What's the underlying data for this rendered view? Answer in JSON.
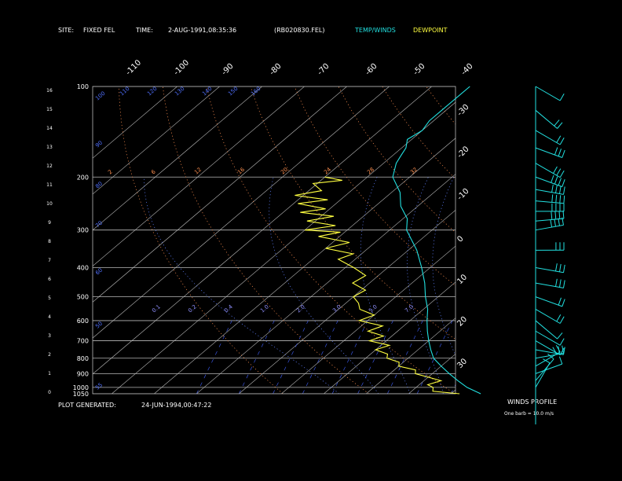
{
  "header": {
    "site_label": "SITE:",
    "site_value": "FIXED FEL",
    "time_label": "TIME:",
    "time_value": "2-AUG-1991,08:35:36",
    "file": "(RB020830.FEL)",
    "temp_winds": "TEMP/WINDS",
    "dewpoint": "DEWPOINT"
  },
  "footer": {
    "generated_label": "PLOT GENERATED:",
    "generated_value": "24-JUN-1994,00:47:22"
  },
  "winds_panel": {
    "title": "WINDS PROFILE",
    "note": "One barb = 10.0 m/s"
  },
  "colors": {
    "temperature": "#22e0e0",
    "dewpoint": "#ffff40",
    "grid": "#b8b8b8",
    "mixing_ratio": "#4060ff",
    "dry_adiabat": "#ff9050",
    "moist_adiabat": "#6080ff"
  },
  "chart_data": {
    "type": "line",
    "subtype": "skew-T log-p",
    "pressure_levels": [
      "100",
      "200",
      "300",
      "400",
      "500",
      "600",
      "700",
      "800",
      "900",
      "1000",
      "1050"
    ],
    "height_ticks_km": [
      "16",
      "15",
      "14",
      "13",
      "12",
      "11",
      "10",
      "9",
      "8",
      "7",
      "6",
      "5",
      "4",
      "3",
      "2",
      "1",
      "0"
    ],
    "temperature_ticks_top": [
      "-110",
      "-100",
      "-90",
      "-80",
      "-70",
      "-60",
      "-50",
      "-40"
    ],
    "temperature_ticks_right": [
      "-30",
      "-20",
      "-10",
      "0",
      "10",
      "20",
      "30"
    ],
    "mixing_ratio_labels": [
      "55",
      "50",
      "60",
      "70",
      "80",
      "90",
      "100",
      "110",
      "120",
      "130",
      "140",
      "150",
      "160"
    ],
    "dry_adiabat_labels": [
      "2",
      "6",
      "12",
      "16",
      "20",
      "24",
      "28",
      "32"
    ],
    "small_labels": [
      "0.1",
      "0.2",
      "0.4",
      "1.0",
      "2.0",
      "3.0",
      "5.0",
      "7.0"
    ],
    "ylim_hpa": [
      1050,
      100
    ],
    "series": [
      {
        "name": "TEMP/WINDS",
        "points_hpa_c": [
          [
            1050,
            27
          ],
          [
            1000,
            22
          ],
          [
            950,
            18
          ],
          [
            900,
            14
          ],
          [
            850,
            10
          ],
          [
            800,
            6
          ],
          [
            750,
            3
          ],
          [
            700,
            0
          ],
          [
            650,
            -3
          ],
          [
            600,
            -6
          ],
          [
            550,
            -9
          ],
          [
            500,
            -13
          ],
          [
            450,
            -17
          ],
          [
            400,
            -22
          ],
          [
            350,
            -28
          ],
          [
            300,
            -36
          ],
          [
            275,
            -39
          ],
          [
            250,
            -44
          ],
          [
            225,
            -48
          ],
          [
            200,
            -54
          ],
          [
            180,
            -57
          ],
          [
            170,
            -58
          ],
          [
            160,
            -59
          ],
          [
            150,
            -61
          ],
          [
            140,
            -60
          ],
          [
            130,
            -61
          ],
          [
            120,
            -61
          ],
          [
            110,
            -61
          ],
          [
            100,
            -61
          ]
        ]
      },
      {
        "name": "DEWPOINT",
        "points_hpa_c": [
          [
            1050,
            22
          ],
          [
            1030,
            15
          ],
          [
            1000,
            14
          ],
          [
            980,
            12
          ],
          [
            950,
            14
          ],
          [
            925,
            10
          ],
          [
            900,
            6
          ],
          [
            875,
            5
          ],
          [
            850,
            0
          ],
          [
            825,
            -1
          ],
          [
            800,
            -5
          ],
          [
            775,
            -6
          ],
          [
            750,
            -10
          ],
          [
            725,
            -8
          ],
          [
            700,
            -14
          ],
          [
            675,
            -12
          ],
          [
            650,
            -17
          ],
          [
            625,
            -15
          ],
          [
            600,
            -22
          ],
          [
            575,
            -20
          ],
          [
            550,
            -25
          ],
          [
            525,
            -27
          ],
          [
            500,
            -30
          ],
          [
            475,
            -29
          ],
          [
            450,
            -34
          ],
          [
            425,
            -33
          ],
          [
            400,
            -38
          ],
          [
            375,
            -44
          ],
          [
            360,
            -42
          ],
          [
            345,
            -50
          ],
          [
            330,
            -46
          ],
          [
            315,
            -55
          ],
          [
            305,
            -51
          ],
          [
            300,
            -60
          ],
          [
            290,
            -54
          ],
          [
            280,
            -62
          ],
          [
            270,
            -57
          ],
          [
            262,
            -66
          ],
          [
            255,
            -61
          ],
          [
            245,
            -69
          ],
          [
            238,
            -63
          ],
          [
            230,
            -72
          ],
          [
            222,
            -67
          ],
          [
            210,
            -71
          ],
          [
            205,
            -65
          ],
          [
            200,
            -70
          ]
        ]
      }
    ],
    "wind_profile_ms": [
      [
        1000,
        5,
        210
      ],
      [
        950,
        10,
        220
      ],
      [
        900,
        10,
        250
      ],
      [
        850,
        15,
        240
      ],
      [
        800,
        15,
        260
      ],
      [
        750,
        10,
        280
      ],
      [
        700,
        5,
        300
      ],
      [
        650,
        5,
        300
      ],
      [
        600,
        10,
        310
      ],
      [
        550,
        15,
        300
      ],
      [
        500,
        20,
        290
      ],
      [
        450,
        25,
        280
      ],
      [
        400,
        25,
        280
      ],
      [
        350,
        30,
        270
      ],
      [
        300,
        40,
        260
      ],
      [
        280,
        40,
        265
      ],
      [
        260,
        35,
        270
      ],
      [
        240,
        40,
        275
      ],
      [
        220,
        40,
        280
      ],
      [
        200,
        35,
        290
      ],
      [
        180,
        30,
        300
      ],
      [
        160,
        25,
        290
      ],
      [
        140,
        20,
        300
      ],
      [
        120,
        15,
        310
      ],
      [
        100,
        10,
        300
      ]
    ]
  }
}
